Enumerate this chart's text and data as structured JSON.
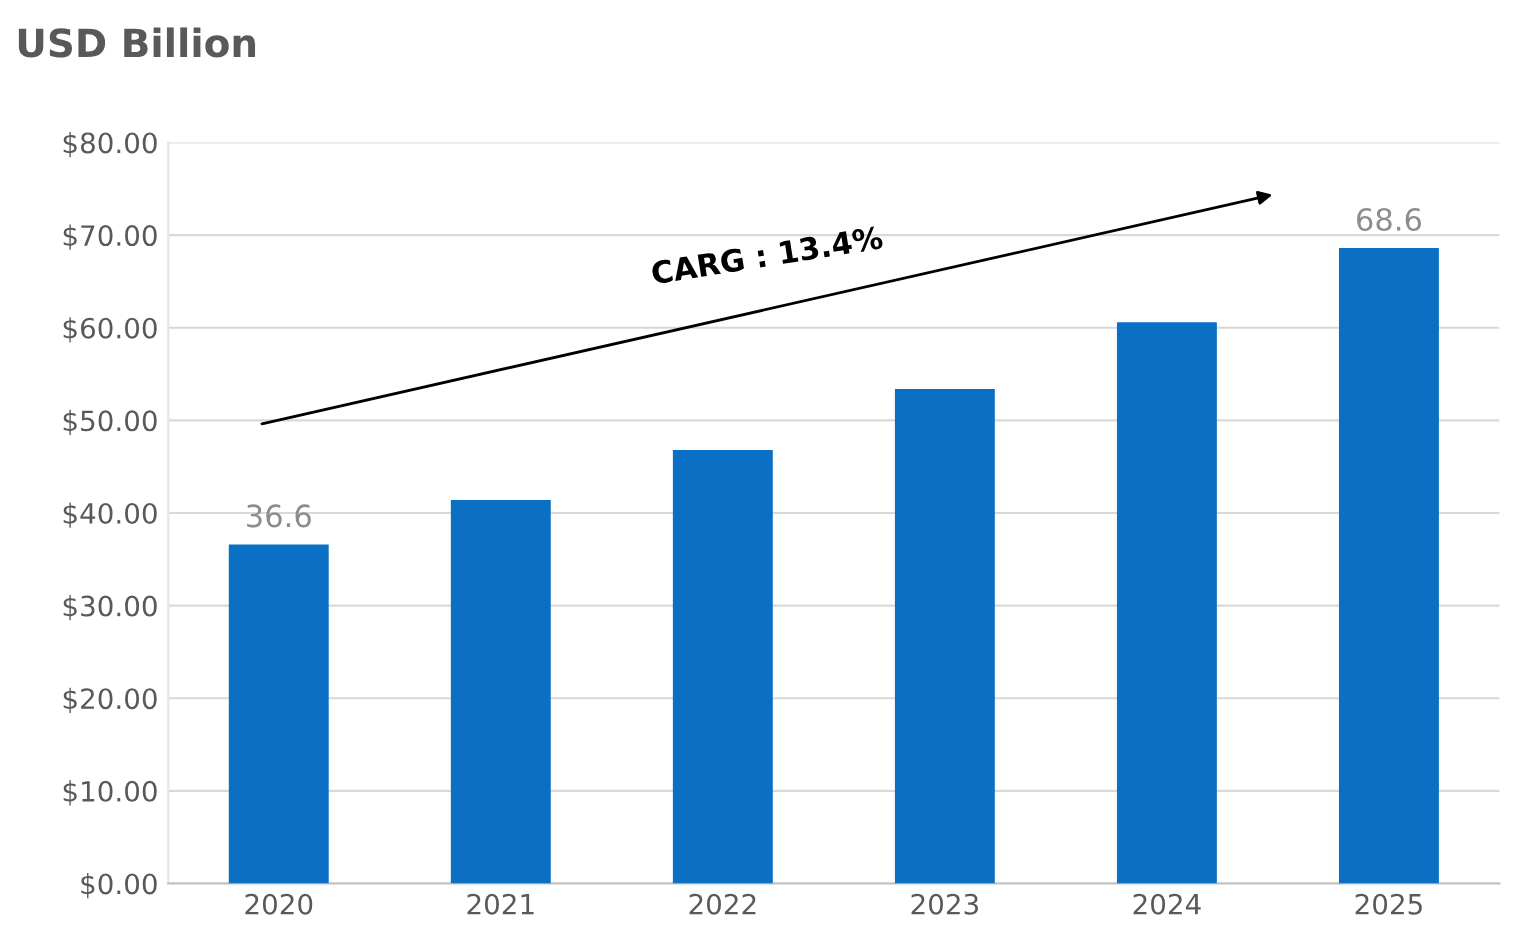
{
  "chart_data": {
    "type": "bar",
    "title": "USD Billion",
    "categories": [
      "2020",
      "2021",
      "2022",
      "2023",
      "2024",
      "2025"
    ],
    "values": [
      36.6,
      41.4,
      46.8,
      53.4,
      60.6,
      68.6
    ],
    "value_labels": [
      "36.6",
      null,
      null,
      null,
      null,
      "68.6"
    ],
    "color": "#0b70c4",
    "ylim": [
      0,
      80
    ],
    "yticks": [
      {
        "value": 0,
        "label": "$0.00"
      },
      {
        "value": 10,
        "label": "$10.00"
      },
      {
        "value": 20,
        "label": "$20.00"
      },
      {
        "value": 30,
        "label": "$30.00"
      },
      {
        "value": 40,
        "label": "$40.00"
      },
      {
        "value": 50,
        "label": "$50.00"
      },
      {
        "value": 60,
        "label": "$60.00"
      },
      {
        "value": 70,
        "label": "$70.00"
      },
      {
        "value": 80,
        "label": "$80.00"
      }
    ],
    "grid": "y",
    "annotations": [
      "CARG : 13.4%"
    ]
  }
}
